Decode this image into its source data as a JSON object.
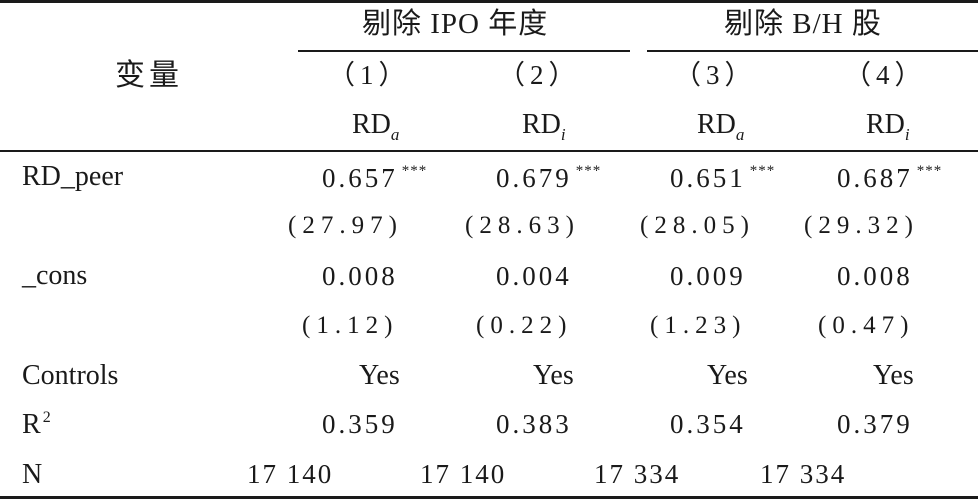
{
  "table": {
    "row_header": "变量",
    "groups": [
      "剔除 IPO 年度",
      "剔除 B/H 股"
    ],
    "col_numbers": [
      "（1）",
      "（2）",
      "（3）",
      "（4）"
    ],
    "dep_vars": [
      {
        "base": "RD",
        "sub": "a"
      },
      {
        "base": "RD",
        "sub": "i"
      },
      {
        "base": "RD",
        "sub": "a"
      },
      {
        "base": "RD",
        "sub": "i"
      }
    ],
    "rows": {
      "rd_peer": {
        "label": "RD_peer",
        "coefs": [
          "0.657",
          "0.679",
          "0.651",
          "0.687"
        ],
        "stars": [
          "***",
          "***",
          "***",
          "***"
        ],
        "tstats": [
          "(27.97)",
          "(28.63)",
          "(28.05)",
          "(29.32)"
        ]
      },
      "cons": {
        "label": "_cons",
        "coefs": [
          "0.008",
          "0.004",
          "0.009",
          "0.008"
        ],
        "tstats": [
          "(1.12)",
          "(0.22)",
          "(1.23)",
          "(0.47)"
        ]
      },
      "controls": {
        "label": "Controls",
        "values": [
          "Yes",
          "Yes",
          "Yes",
          "Yes"
        ]
      },
      "r2": {
        "label": "R",
        "label_sup": "2",
        "values": [
          "0.359",
          "0.383",
          "0.354",
          "0.379"
        ]
      },
      "n": {
        "label": "N",
        "values": [
          "17 140",
          "17 140",
          "17 334",
          "17 334"
        ]
      }
    }
  }
}
